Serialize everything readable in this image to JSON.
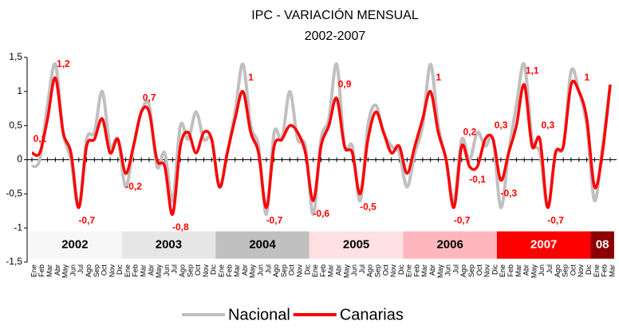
{
  "chart_data": {
    "type": "line",
    "title": "IPC - VARIACIÓN MENSUAL",
    "subtitle": "2002-2007",
    "categories": [
      "Ene",
      "Feb",
      "Mar",
      "Abr",
      "May",
      "Jun",
      "Jul",
      "Ago",
      "Sep",
      "Oct",
      "Nov",
      "Dic",
      "Ene",
      "Feb",
      "Mar",
      "Abr",
      "May",
      "Jun",
      "Jul",
      "Ago",
      "Sep",
      "Oct",
      "Nov",
      "Dic",
      "Ene",
      "Feb",
      "Mar",
      "Abr",
      "May",
      "Jun",
      "Jul",
      "Ago",
      "Sep",
      "Oct",
      "Nov",
      "Dic",
      "Ene",
      "Feb",
      "Mar",
      "Abr",
      "May",
      "Jun",
      "Jul",
      "Ago",
      "Sep",
      "Oct",
      "Nov",
      "Dic",
      "Ene",
      "Feb",
      "Mar",
      "Abr",
      "May",
      "Jun",
      "Jul",
      "Ago",
      "Sep",
      "Oct",
      "Nov",
      "Dic",
      "Ene",
      "Feb",
      "Mar",
      "Abr",
      "May",
      "Jun",
      "Jul",
      "Ago",
      "Sep",
      "Oct",
      "Nov",
      "Dic",
      "Ene",
      "Feb",
      "Mar"
    ],
    "series": [
      {
        "name": "Nacional",
        "color": "#c0c0c0",
        "values": [
          -0.1,
          0.0,
          0.8,
          1.4,
          0.4,
          0.0,
          -0.7,
          0.3,
          0.4,
          1.0,
          0.2,
          0.3,
          -0.4,
          0.2,
          0.7,
          0.8,
          -0.1,
          0.1,
          -0.6,
          0.5,
          0.3,
          0.7,
          0.3,
          0.3,
          -0.4,
          0.1,
          0.7,
          1.4,
          0.5,
          0.2,
          -0.8,
          0.4,
          0.3,
          1.0,
          0.3,
          0.2,
          -0.8,
          0.3,
          0.6,
          1.4,
          0.2,
          0.2,
          -0.6,
          0.5,
          0.8,
          0.4,
          0.2,
          0.1,
          -0.4,
          0.1,
          0.5,
          1.4,
          0.5,
          0.0,
          -0.6,
          0.3,
          0.0,
          0.4,
          0.2,
          0.3,
          -0.7,
          0.1,
          0.8,
          1.4,
          0.3,
          0.1,
          -0.7,
          0.1,
          0.2,
          1.3,
          1.0,
          0.5,
          -0.6,
          0.2,
          1.1
        ]
      },
      {
        "name": "Canarias",
        "color": "#ff0000",
        "values": [
          0.1,
          0.1,
          0.6,
          1.2,
          0.4,
          0.1,
          -0.7,
          0.2,
          0.3,
          0.6,
          0.1,
          0.3,
          -0.2,
          0.2,
          0.7,
          0.7,
          0.0,
          -0.1,
          -0.8,
          0.2,
          0.4,
          0.1,
          0.4,
          0.3,
          -0.4,
          0.1,
          0.6,
          1.0,
          0.4,
          0.1,
          -0.7,
          0.2,
          0.3,
          0.5,
          0.4,
          0.1,
          -0.6,
          0.2,
          0.5,
          0.9,
          0.2,
          0.1,
          -0.5,
          0.3,
          0.7,
          0.4,
          0.1,
          0.2,
          -0.2,
          0.2,
          0.6,
          1.0,
          0.4,
          0.0,
          -0.7,
          0.2,
          -0.1,
          -0.1,
          0.3,
          0.3,
          -0.3,
          0.1,
          0.5,
          1.1,
          0.2,
          0.3,
          -0.7,
          0.1,
          0.2,
          1.1,
          1.0,
          0.6,
          -0.4,
          0.1,
          1.1
        ],
        "value_labels": [
          "0,1",
          null,
          null,
          "1,2",
          null,
          null,
          "-0,7",
          null,
          null,
          null,
          null,
          null,
          "-0,2",
          null,
          "0,7",
          null,
          null,
          null,
          "-0,8",
          null,
          null,
          null,
          null,
          null,
          null,
          null,
          null,
          "1",
          null,
          null,
          "-0,7",
          null,
          null,
          null,
          null,
          null,
          "-0,6",
          null,
          null,
          "0,9",
          null,
          null,
          "-0,5",
          null,
          null,
          null,
          null,
          null,
          null,
          null,
          null,
          "1",
          null,
          null,
          "-0,7",
          "0,2",
          "-0,1",
          null,
          null,
          "0,3",
          "-0,3",
          null,
          null,
          "1,1",
          null,
          "0,3",
          "-0,7",
          null,
          null,
          null,
          "1",
          null,
          null,
          null,
          null
        ]
      }
    ],
    "ylim": [
      -1.5,
      1.5
    ],
    "yticks": [
      {
        "value": -1.5,
        "label": "-1,5"
      },
      -1,
      {
        "value": -0.5,
        "label": "-0,5"
      },
      0,
      {
        "value": 0.5,
        "label": "0,5"
      },
      1,
      {
        "value": 1.5,
        "label": "1,5"
      }
    ],
    "year_bands": [
      {
        "label": "2002",
        "color": "#f7f7f7",
        "text_color": "#000000"
      },
      {
        "label": "2003",
        "color": "#e6e6e6",
        "text_color": "#000000"
      },
      {
        "label": "2004",
        "color": "#c0c0c0",
        "text_color": "#000000"
      },
      {
        "label": "2005",
        "color": "#ffe0e3",
        "text_color": "#000000"
      },
      {
        "label": "2006",
        "color": "#ffb6bd",
        "text_color": "#000000"
      },
      {
        "label": "2007",
        "color": "#ff0000",
        "text_color": "#ffffff"
      },
      {
        "label": "08",
        "color": "#8b0000",
        "text_color": "#ffffff"
      }
    ]
  }
}
